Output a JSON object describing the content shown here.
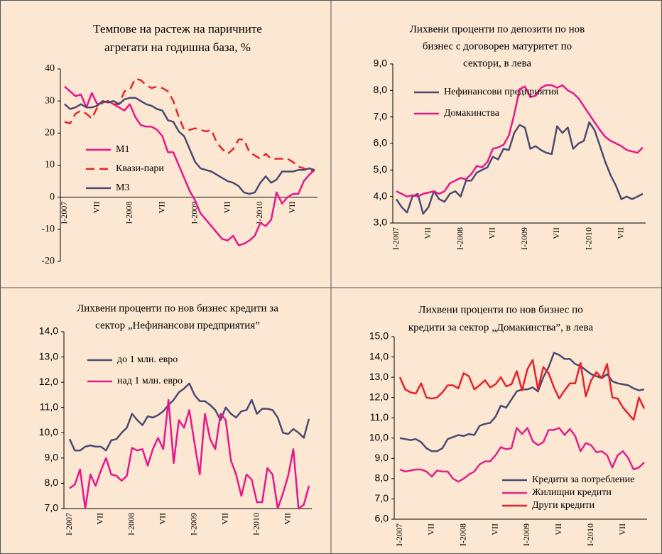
{
  "chart_data": [
    {
      "type": "line",
      "title": [
        "Темпове на растеж на паричните",
        "агрегати на годишна база, %"
      ],
      "categories": [
        "I-2007",
        null,
        null,
        null,
        null,
        null,
        "VII",
        null,
        null,
        null,
        null,
        null,
        "I-2008",
        null,
        null,
        null,
        null,
        null,
        "VII",
        null,
        null,
        null,
        null,
        null,
        "I-2009",
        null,
        null,
        null,
        null,
        null,
        "VII",
        null,
        null,
        null,
        null,
        null,
        "I-2010",
        null,
        null,
        null,
        null,
        null,
        "VII",
        null,
        null,
        null,
        null
      ],
      "ylim": [
        -20,
        40
      ],
      "yticks": [
        -20,
        -10,
        0,
        10,
        20,
        30,
        40
      ],
      "legend": "center-left",
      "series": [
        {
          "name": "М1",
          "color": "#e6178c",
          "values": [
            34.5,
            33,
            31.5,
            32,
            28,
            32.5,
            29,
            29.5,
            30,
            29,
            28,
            27,
            29,
            25,
            22.5,
            22,
            22,
            21,
            19,
            14,
            14,
            10,
            6,
            2,
            -1,
            -5,
            -7,
            -9,
            -11,
            -13,
            -13.5,
            -12,
            -15,
            -14.5,
            -13.5,
            -12,
            -8,
            -9,
            -7,
            1.5,
            -2,
            0,
            1,
            1,
            5,
            7,
            8.5
          ]
        },
        {
          "name": "Квази-пари",
          "color": "#e3262a",
          "dashed": true,
          "values": [
            23.5,
            23,
            26,
            27,
            26,
            24.5,
            28,
            29.5,
            30,
            29,
            29,
            33,
            33.5,
            37,
            36.5,
            35,
            34,
            34.5,
            34,
            33,
            30,
            25,
            21,
            21,
            21.5,
            21,
            20.5,
            21,
            17,
            15,
            13.5,
            15,
            18,
            18,
            14,
            13,
            12,
            13.5,
            12,
            12,
            12,
            12,
            11,
            9.5,
            9,
            8,
            8.5
          ]
        },
        {
          "name": "М3",
          "color": "#4b4a72",
          "values": [
            29,
            27.5,
            28,
            29,
            28,
            28,
            28.5,
            30,
            29.5,
            30,
            29,
            30.5,
            31,
            31,
            30,
            29,
            28.5,
            27.5,
            27,
            24,
            23.5,
            20.5,
            19,
            15,
            11,
            9,
            8.5,
            8,
            7,
            6,
            5,
            4.5,
            3.5,
            1.5,
            1,
            1.5,
            4.5,
            6.5,
            4.5,
            5.5,
            8,
            8,
            8,
            8.5,
            8.5,
            9,
            8.5
          ]
        }
      ]
    },
    {
      "type": "line",
      "title": [
        "Лихвени проценти по депозити по нов",
        "бизнес с договорен матуритет по",
        "сектори, в лева"
      ],
      "categories": [
        "I-2007",
        null,
        null,
        null,
        null,
        null,
        "VII",
        null,
        null,
        null,
        null,
        null,
        "I-2008",
        null,
        null,
        null,
        null,
        null,
        "VII",
        null,
        null,
        null,
        null,
        null,
        "I-2009",
        null,
        null,
        null,
        null,
        null,
        "VII",
        null,
        null,
        null,
        null,
        null,
        "I-2010",
        null,
        null,
        null,
        null,
        null,
        "VII",
        null,
        null,
        null,
        null
      ],
      "ylim": [
        3,
        9
      ],
      "yticks": [
        {
          "value": 3,
          "label": "3,0"
        },
        {
          "value": 4,
          "label": "4,0"
        },
        {
          "value": 5,
          "label": "5,0"
        },
        {
          "value": 6,
          "label": "6,0"
        },
        {
          "value": 7,
          "label": "7,0"
        },
        {
          "value": 8,
          "label": "8,0"
        },
        {
          "value": 9,
          "label": "9,0"
        }
      ],
      "legend": "upper-left",
      "series": [
        {
          "name": "Нефинансови предприятия",
          "color": "#4b4a72",
          "values": [
            3.9,
            3.6,
            3.4,
            4.0,
            4.1,
            3.35,
            3.6,
            4.2,
            3.9,
            3.8,
            4.1,
            4.2,
            4.0,
            4.6,
            4.6,
            4.9,
            5.0,
            5.1,
            5.5,
            5.4,
            5.8,
            5.75,
            6.4,
            6.7,
            6.6,
            5.8,
            5.9,
            5.75,
            5.65,
            5.6,
            6.65,
            6.4,
            6.6,
            5.8,
            6.0,
            6.1,
            6.8,
            6.5,
            5.9,
            5.3,
            4.8,
            4.4,
            3.9,
            4.0,
            3.9,
            4.0,
            4.1
          ]
        },
        {
          "name": "Домакинства",
          "color": "#e6178c",
          "values": [
            4.2,
            4.1,
            4.0,
            4.05,
            4.0,
            4.1,
            4.15,
            4.2,
            4.1,
            4.2,
            4.5,
            4.6,
            4.7,
            4.65,
            4.85,
            5.15,
            5.1,
            5.3,
            5.8,
            5.85,
            5.95,
            6.3,
            7.1,
            8.05,
            8.15,
            7.75,
            7.8,
            8.1,
            8.2,
            8.2,
            8.1,
            8.2,
            8.0,
            7.9,
            7.7,
            7.4,
            7.1,
            6.8,
            6.5,
            6.25,
            6.1,
            6.0,
            5.9,
            5.75,
            5.7,
            5.65,
            5.85
          ]
        }
      ]
    },
    {
      "type": "line",
      "title": [
        "Лихвени проценти по нов бизнес кредити за",
        "сектор „Нефинансови предприятия”"
      ],
      "categories": [
        "I-2007",
        null,
        null,
        null,
        null,
        null,
        "VII",
        null,
        null,
        null,
        null,
        null,
        "I-2008",
        null,
        null,
        null,
        null,
        null,
        "VII",
        null,
        null,
        null,
        null,
        null,
        "I-2009",
        null,
        null,
        null,
        null,
        null,
        "VII",
        null,
        null,
        null,
        null,
        null,
        "I-2010",
        null,
        null,
        null,
        null,
        null,
        "VII",
        null,
        null,
        null,
        null
      ],
      "ylim": [
        7,
        14
      ],
      "yticks": [
        {
          "value": 7,
          "label": "7,0"
        },
        {
          "value": 8,
          "label": "8,0"
        },
        {
          "value": 9,
          "label": "9,0"
        },
        {
          "value": 10,
          "label": "10,0"
        },
        {
          "value": 11,
          "label": "11,0"
        },
        {
          "value": 12,
          "label": "12,0"
        },
        {
          "value": 13,
          "label": "13,0"
        },
        {
          "value": 14,
          "label": "14,0"
        }
      ],
      "legend": "upper-left",
      "series": [
        {
          "name": "до 1 млн. евро",
          "color": "#4b4a72",
          "values": [
            9.75,
            9.3,
            9.3,
            9.45,
            9.5,
            9.45,
            9.45,
            9.3,
            9.7,
            9.75,
            10.0,
            10.2,
            10.75,
            10.5,
            10.3,
            10.65,
            10.6,
            10.7,
            10.85,
            11.1,
            11.3,
            11.6,
            11.75,
            11.95,
            11.5,
            11.25,
            11.25,
            11.1,
            10.9,
            10.5,
            11.0,
            10.75,
            10.6,
            10.85,
            10.9,
            11.3,
            10.75,
            10.95,
            10.95,
            10.9,
            10.6,
            10.0,
            9.95,
            10.15,
            10.0,
            9.8,
            10.55
          ]
        },
        {
          "name": "над 1 млн. евро",
          "color": "#e6178c",
          "values": [
            7.8,
            7.95,
            8.55,
            7.0,
            8.35,
            7.9,
            8.5,
            9.0,
            8.35,
            8.3,
            8.1,
            8.3,
            9.4,
            9.3,
            9.35,
            8.7,
            9.35,
            9.8,
            9.35,
            11.3,
            8.8,
            10.5,
            10.2,
            10.9,
            9.6,
            8.35,
            10.75,
            9.75,
            9.35,
            10.75,
            10.5,
            8.9,
            8.35,
            7.5,
            8.35,
            8.15,
            7.25,
            7.25,
            8.6,
            8.35,
            7.0,
            7.6,
            8.3,
            9.35,
            7.0,
            7.15,
            7.9
          ]
        }
      ]
    },
    {
      "type": "line",
      "title": [
        "Лихвени проценти по нов бизнес по",
        "кредити за сектор „Домакинства”, в лева"
      ],
      "categories": [
        "I-2007",
        null,
        null,
        null,
        null,
        null,
        "VII",
        null,
        null,
        null,
        null,
        null,
        "I-2008",
        null,
        null,
        null,
        null,
        null,
        "VII",
        null,
        null,
        null,
        null,
        null,
        "I-2009",
        null,
        null,
        null,
        null,
        null,
        "VII",
        null,
        null,
        null,
        null,
        null,
        "I-2010",
        null,
        null,
        null,
        null,
        null,
        "VII",
        null,
        null,
        null,
        null
      ],
      "ylim": [
        6,
        15
      ],
      "yticks": [
        {
          "value": 6,
          "label": "6,0"
        },
        {
          "value": 7,
          "label": "7,0"
        },
        {
          "value": 8,
          "label": "8,0"
        },
        {
          "value": 9,
          "label": "9,0"
        },
        {
          "value": 10,
          "label": "10,0"
        },
        {
          "value": 11,
          "label": "11,0"
        },
        {
          "value": 12,
          "label": "12,0"
        },
        {
          "value": 13,
          "label": "13,0"
        },
        {
          "value": 14,
          "label": "14,0"
        },
        {
          "value": 15,
          "label": "15,0"
        }
      ],
      "legend": "lower-right",
      "series": [
        {
          "name": "Кредити за потребление",
          "color": "#4b4a72",
          "values": [
            10.0,
            9.95,
            9.9,
            9.95,
            9.8,
            9.5,
            9.35,
            9.35,
            9.5,
            9.95,
            10.05,
            10.15,
            10.1,
            10.2,
            10.15,
            10.6,
            10.7,
            10.75,
            11.05,
            11.6,
            11.5,
            11.9,
            12.3,
            12.4,
            12.4,
            12.5,
            12.3,
            13.0,
            13.5,
            14.2,
            14.1,
            13.9,
            13.9,
            13.65,
            13.55,
            13.35,
            13.15,
            13.05,
            12.95,
            13.15,
            12.8,
            12.7,
            12.65,
            12.6,
            12.45,
            12.35,
            12.4
          ]
        },
        {
          "name": "Жилищни кредити",
          "color": "#e0218a",
          "values": [
            8.45,
            8.35,
            8.4,
            8.45,
            8.45,
            8.35,
            8.1,
            8.4,
            8.35,
            8.35,
            8.0,
            7.85,
            8.0,
            8.2,
            8.35,
            8.7,
            8.85,
            8.85,
            9.15,
            9.55,
            9.45,
            9.5,
            10.5,
            10.2,
            10.5,
            9.85,
            9.65,
            9.8,
            10.4,
            10.4,
            10.5,
            10.15,
            10.45,
            10.1,
            9.35,
            9.75,
            9.65,
            9.3,
            9.35,
            9.15,
            8.55,
            9.15,
            9.35,
            9.0,
            8.45,
            8.55,
            8.8
          ]
        },
        {
          "name": "Други кредити",
          "color": "#e8202a",
          "values": [
            13.0,
            12.4,
            12.25,
            12.2,
            12.7,
            12.0,
            11.95,
            12.0,
            12.25,
            12.6,
            12.6,
            12.45,
            13.2,
            13.05,
            12.4,
            12.6,
            12.85,
            12.5,
            12.65,
            13.0,
            12.55,
            12.65,
            13.3,
            12.35,
            13.4,
            13.85,
            12.4,
            13.5,
            13.2,
            12.5,
            11.95,
            12.35,
            12.7,
            12.7,
            13.7,
            12.05,
            12.85,
            13.25,
            12.95,
            13.65,
            12.0,
            11.95,
            11.5,
            11.2,
            10.9,
            12.0,
            11.45
          ]
        }
      ]
    }
  ]
}
